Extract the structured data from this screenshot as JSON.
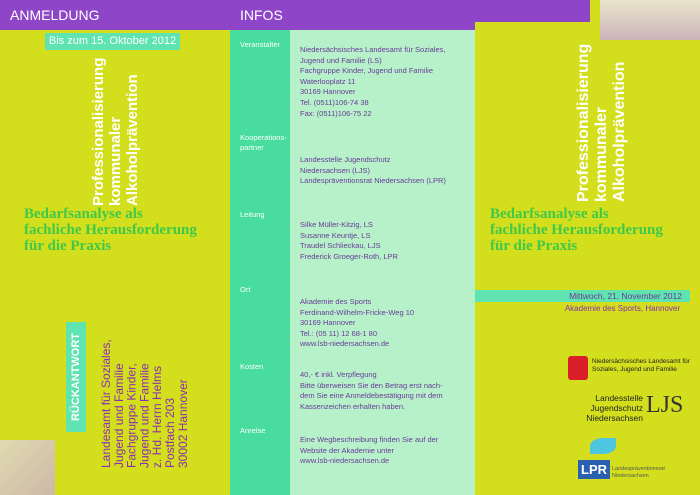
{
  "left": {
    "header": "ANMELDUNG",
    "deadline": "Bis zum 15. Oktober 2012",
    "title_lines": [
      "Professionalisierung",
      "kommunaler",
      "Alkoholprävention"
    ],
    "subtitle_lines": [
      "Bedarfsanalyse als",
      "fachliche Herausforderung",
      "für die Praxis"
    ],
    "reply_label": "RÜCKANTWORT",
    "address_lines": [
      "Landesamt für Soziales,",
      "Jugend und Familie",
      "Fachgruppe Kinder,",
      "Jugend und Familie",
      "z. Hd. Herrn Helms",
      "Postfach 203",
      "30002 Hannover"
    ]
  },
  "info": {
    "header": "INFOS",
    "sections": [
      {
        "label_lines": [
          "Veranstalter"
        ],
        "lines": [
          "Niedersächsisches Landesamt für Soziales,",
          "Jugend und Familie (LS)",
          "Fachgruppe Kinder, Jugend und Familie",
          "Waterlooplatz 11",
          "30169 Hannover",
          "Tel. (0511)106-74 38",
          "Fax: (0511)106-75 22"
        ]
      },
      {
        "label_lines": [
          "Kooperations-",
          "partner"
        ],
        "lines": [
          "Landesstelle Jugendschutz",
          "Niedersachsen (LJS)",
          "Landespräventionsrat Niedersachsen (LPR)"
        ]
      },
      {
        "label_lines": [
          "Leitung"
        ],
        "lines": [
          "Silke Müller-Kitzig, LS",
          "Susanne Keuntje, LS",
          "Traudel Schlieckau, LJS",
          "Frederick Groeger-Roth, LPR"
        ]
      },
      {
        "label_lines": [
          "Ort"
        ],
        "lines": [
          "Akademie des Sports",
          "Ferdinand-Wilhelm-Fricke-Weg 10",
          "30169 Hannover",
          "Tel.: (05 11) 12 68-1 80",
          "www.lsb-niedersachsen.de"
        ]
      },
      {
        "label_lines": [
          "Kosten"
        ],
        "lines": [
          "40,- € inkl. Verpflegung",
          "Bitte überweisen Sie den Betrag erst nach-",
          "dem Sie eine Anmeldebestätigung mit dem",
          "Kassenzeichen erhalten haben."
        ]
      },
      {
        "label_lines": [
          "Anreise"
        ],
        "lines": [
          "Eine Wegbeschreibung finden Sie auf der",
          "Website der Akademie unter",
          "www.lsb-niedersachsen.de"
        ]
      }
    ]
  },
  "right": {
    "title_lines": [
      "Professionalisierung",
      "kommunaler",
      "Alkoholprävention"
    ],
    "subtitle_lines": [
      "Bedarfsanalyse als",
      "fachliche Herausforderung",
      "für die Praxis"
    ],
    "date": "Mittwoch, 21. November 2012",
    "venue": "Akademie des Sports, Hannover",
    "logos": {
      "ls_lines": [
        "Niedersächsisches Landesamt für",
        "Soziales, Jugend und Familie"
      ],
      "ljs_lines": [
        "Landesstelle",
        "Jugendschutz",
        "Niedersachsen"
      ],
      "ljs_mark": "LJS",
      "lpr_mark": "LPR",
      "lpr_lines": [
        "Landespräventionsrat",
        "Niedersachsen"
      ]
    }
  }
}
